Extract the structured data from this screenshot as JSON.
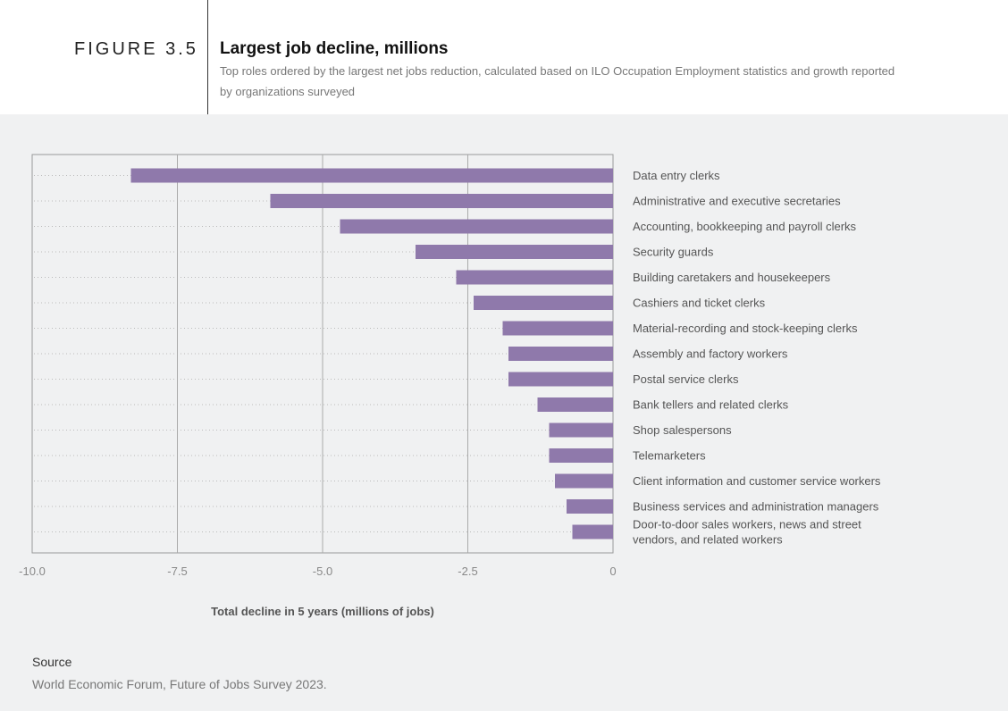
{
  "figure": {
    "number": "FIGURE 3.5",
    "title": "Largest job decline, millions",
    "subtitle": "Top roles ordered by the largest net jobs reduction, calculated based on ILO Occupation Employment statistics and growth reported by organizations surveyed"
  },
  "source": {
    "heading": "Source",
    "text": "World Economic Forum, Future of Jobs Survey 2023."
  },
  "colors": {
    "bar": "#8f79ab",
    "gridline": "#aaaaaa",
    "dotted": "#bbbbbb",
    "frame": "#999999",
    "label": "#555555",
    "tick": "#888888"
  },
  "chart_data": {
    "type": "bar",
    "orientation": "horizontal",
    "title": "Largest job decline, millions",
    "xlabel": "Total decline in 5 years (millions of jobs)",
    "ylabel": "",
    "xlim": [
      -10,
      0
    ],
    "xticks": [
      -10,
      -7.5,
      -5,
      -2.5,
      0
    ],
    "xtick_labels": [
      "-10.0",
      "-7.5",
      "-5.0",
      "-2.5",
      "0"
    ],
    "grid": true,
    "categories": [
      "Data entry clerks",
      "Administrative and executive secretaries",
      "Accounting, bookkeeping and payroll clerks",
      "Security guards",
      "Building caretakers and housekeepers",
      "Cashiers and ticket clerks",
      "Material-recording and stock-keeping clerks",
      "Assembly and factory workers",
      "Postal service clerks",
      "Bank tellers and related clerks",
      "Shop salespersons",
      "Telemarketers",
      "Client information and customer service workers",
      "Business services and administration managers",
      "Door-to-door sales workers, news and street vendors, and related workers"
    ],
    "category_lines": [
      [
        "Data entry clerks"
      ],
      [
        "Administrative and executive secretaries"
      ],
      [
        "Accounting, bookkeeping and payroll clerks"
      ],
      [
        "Security guards"
      ],
      [
        "Building caretakers and housekeepers"
      ],
      [
        "Cashiers and ticket clerks"
      ],
      [
        "Material-recording and stock-keeping clerks"
      ],
      [
        "Assembly and factory workers"
      ],
      [
        "Postal service clerks"
      ],
      [
        "Bank tellers and related clerks"
      ],
      [
        "Shop salespersons"
      ],
      [
        "Telemarketers"
      ],
      [
        "Client information and customer service workers"
      ],
      [
        "Business services and administration managers"
      ],
      [
        "Door-to-door sales workers, news and street",
        "vendors, and related workers"
      ]
    ],
    "values": [
      -8.3,
      -5.9,
      -4.7,
      -3.4,
      -2.7,
      -2.4,
      -1.9,
      -1.8,
      -1.8,
      -1.3,
      -1.1,
      -1.1,
      -1.0,
      -0.8,
      -0.7
    ]
  }
}
